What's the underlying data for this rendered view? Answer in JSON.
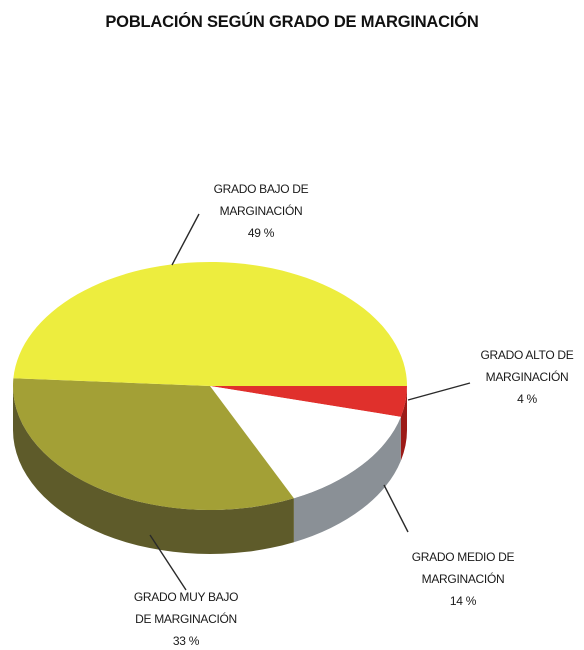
{
  "chart_data": {
    "type": "pie",
    "title": "POBLACIÓN SEGÚN GRADO DE MARGINACIÓN",
    "slices": [
      {
        "label_lines": [
          "GRADO ALTO DE",
          "MARGINACIÓN",
          "4 %"
        ],
        "value": 4,
        "color": "#e0302c",
        "side_color": "#9c1a17"
      },
      {
        "label_lines": [
          "GRADO MEDIO DE",
          "MARGINACIÓN",
          "14 %"
        ],
        "value": 14,
        "color": "#ffffff",
        "side_color": "#8a9096"
      },
      {
        "label_lines": [
          "GRADO MUY BAJO",
          "DE MARGINACIÓN",
          "33 %"
        ],
        "value": 33,
        "color": "#a3a036",
        "side_color": "#5e5b2a"
      },
      {
        "label_lines": [
          "GRADO BAJO DE",
          "MARGINACIÓN",
          "49 %"
        ],
        "value": 49,
        "color": "#eded3e",
        "side_color": "#8f8c25"
      }
    ],
    "legend": "none",
    "style": "3d-pie"
  }
}
